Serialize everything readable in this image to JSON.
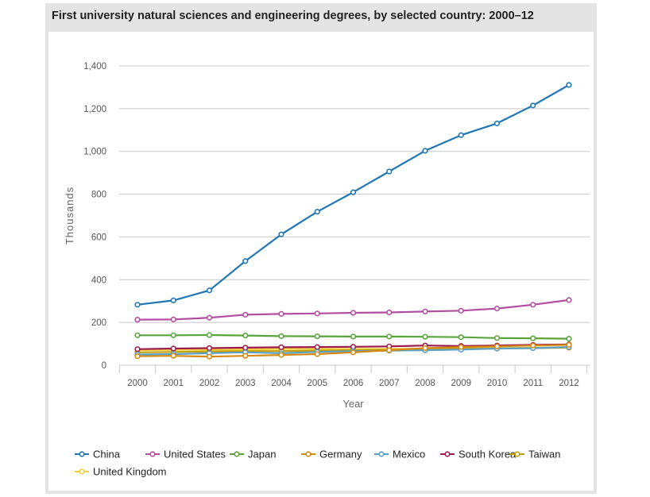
{
  "chart_data": {
    "type": "line",
    "title": "First university natural sciences and engineering degrees, by selected country: 2000–12",
    "xlabel": "Year",
    "ylabel": "Thousands",
    "ylim": [
      0,
      1400
    ],
    "yticks": [
      0,
      200,
      400,
      600,
      800,
      1000,
      1200,
      1400
    ],
    "ytick_labels": [
      "0",
      "200",
      "400",
      "600",
      "800",
      "1,000",
      "1,200",
      "1,400"
    ],
    "grid": true,
    "legend": "bottom",
    "x": [
      "2000",
      "2001",
      "2002",
      "2003",
      "2004",
      "2005",
      "2006",
      "2007",
      "2008",
      "2009",
      "2010",
      "2011",
      "2012"
    ],
    "series": [
      {
        "name": "China",
        "color": "#1f77b4",
        "values": [
          283,
          303,
          350,
          487,
          612,
          718,
          809,
          906,
          1003,
          1076,
          1131,
          1215,
          1311
        ]
      },
      {
        "name": "United States",
        "color": "#b24fa0",
        "values": [
          213,
          214,
          222,
          236,
          240,
          242,
          245,
          247,
          251,
          255,
          265,
          283,
          305
        ]
      },
      {
        "name": "Japan",
        "color": "#5aa43c",
        "values": [
          140,
          140,
          141,
          139,
          136,
          135,
          134,
          134,
          133,
          131,
          127,
          126,
          124
        ]
      },
      {
        "name": "Germany",
        "color": "#d68910",
        "values": [
          42,
          44,
          40,
          44,
          48,
          52,
          60,
          70,
          80,
          85,
          88,
          92,
          95
        ]
      },
      {
        "name": "Mexico",
        "color": "#5aa0c8",
        "values": [
          50,
          52,
          56,
          60,
          56,
          62,
          66,
          68,
          70,
          73,
          78,
          80,
          85
        ]
      },
      {
        "name": "South Korea",
        "color": "#9b1b4f",
        "values": [
          75,
          78,
          80,
          82,
          84,
          85,
          86,
          88,
          92,
          90,
          92,
          95,
          97
        ]
      },
      {
        "name": "Taiwan",
        "color": "#c0a000",
        "values": [
          60,
          62,
          64,
          66,
          66,
          68,
          70,
          72,
          74,
          76,
          78,
          80,
          82
        ]
      },
      {
        "name": "United Kingdom",
        "color": "#f5d03a",
        "values": [
          70,
          72,
          72,
          74,
          76,
          76,
          76,
          76,
          78,
          78,
          80,
          82,
          84
        ]
      }
    ]
  }
}
